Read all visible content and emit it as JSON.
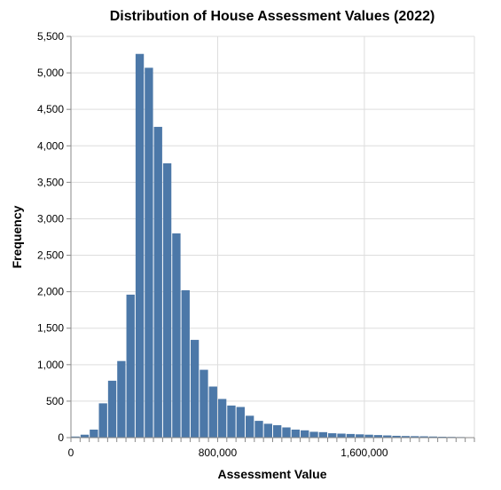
{
  "chart_data": {
    "type": "bar",
    "title": "Distribution of House Assessment Values (2022)",
    "xlabel": "Assessment Value",
    "ylabel": "Frequency",
    "bin_width": 50000,
    "x": [
      0,
      50000,
      100000,
      150000,
      200000,
      250000,
      300000,
      350000,
      400000,
      450000,
      500000,
      550000,
      600000,
      650000,
      700000,
      750000,
      800000,
      850000,
      900000,
      950000,
      1000000,
      1050000,
      1100000,
      1150000,
      1200000,
      1250000,
      1300000,
      1350000,
      1400000,
      1450000,
      1500000,
      1550000,
      1600000,
      1650000,
      1700000,
      1750000,
      1800000,
      1850000,
      1900000,
      1950000,
      2000000,
      2050000,
      2100000,
      2150000
    ],
    "values": [
      15,
      40,
      110,
      470,
      780,
      1050,
      1960,
      5260,
      5070,
      4260,
      3760,
      2800,
      2020,
      1340,
      930,
      700,
      530,
      440,
      420,
      300,
      230,
      190,
      170,
      140,
      110,
      100,
      80,
      75,
      60,
      55,
      50,
      45,
      40,
      35,
      30,
      25,
      22,
      20,
      18,
      15,
      12,
      10,
      8,
      6
    ],
    "xlim": [
      0,
      2200000
    ],
    "ylim": [
      0,
      5500
    ],
    "x_ticks": [
      0,
      800000,
      1600000
    ],
    "x_tick_labels": [
      "0",
      "800,000",
      "1,600,000"
    ],
    "y_ticks": [
      0,
      500,
      1000,
      1500,
      2000,
      2500,
      3000,
      3500,
      4000,
      4500,
      5000,
      5500
    ],
    "y_tick_labels": [
      "0",
      "500",
      "1,000",
      "1,500",
      "2,000",
      "2,500",
      "3,000",
      "3,500",
      "4,000",
      "4,500",
      "5,000",
      "5,500"
    ],
    "grid": true,
    "colors": {
      "bar": "#4c78a8",
      "grid": "#dddddd",
      "axis": "#888888",
      "text": "#000000"
    }
  }
}
